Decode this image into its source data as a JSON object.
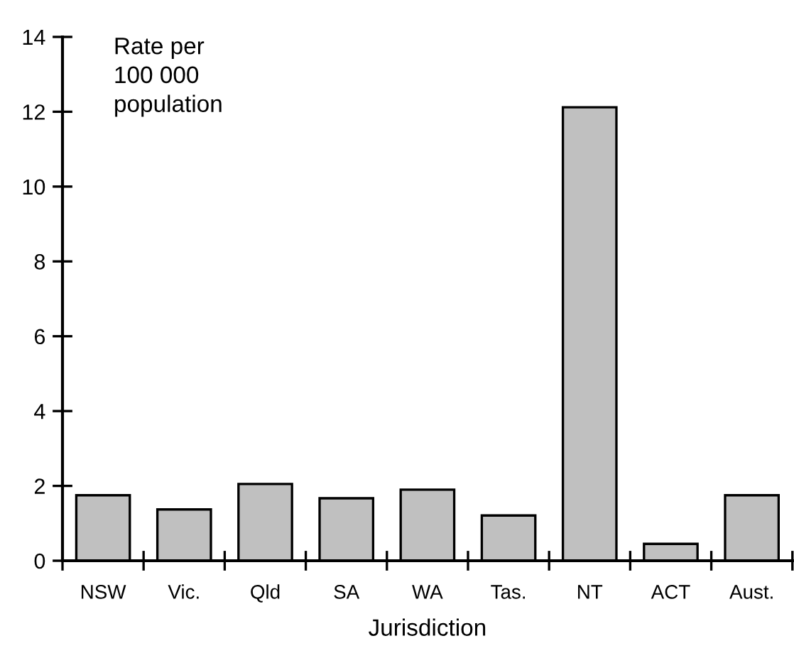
{
  "chart_data": {
    "type": "bar",
    "ylabel": "Rate per\n100 000\npopulation",
    "xlabel": "Jurisdiction",
    "categories": [
      "NSW",
      "Vic.",
      "Qld",
      "SA",
      "WA",
      "Tas.",
      "NT",
      "ACT",
      "Aust."
    ],
    "values": [
      1.75,
      1.37,
      2.05,
      1.67,
      1.9,
      1.21,
      12.12,
      0.45,
      1.75
    ],
    "color": "#c0c0c0",
    "ylim": [
      0,
      14
    ],
    "yticks": [
      0,
      2,
      4,
      6,
      8,
      10,
      12,
      14
    ],
    "grid": false,
    "legend": false
  }
}
